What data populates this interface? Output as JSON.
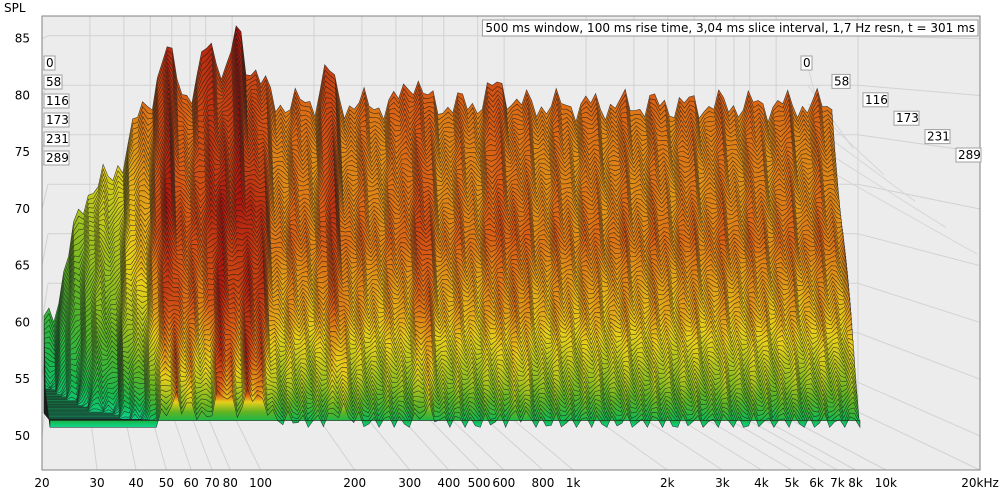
{
  "chart_data": {
    "type": "waterfall",
    "ylabel": "SPL",
    "info": "500 ms window, 100 ms rise time, 3,04 ms slice interval, 1,7 Hz resn, t = 301 ms",
    "y_ticks": [
      50,
      55,
      60,
      65,
      70,
      75,
      80,
      85
    ],
    "x_ticks": [
      {
        "v": 20,
        "label": "20"
      },
      {
        "v": 30,
        "label": "30"
      },
      {
        "v": 40,
        "label": "40"
      },
      {
        "v": 50,
        "label": "50"
      },
      {
        "v": 60,
        "label": "60"
      },
      {
        "v": 70,
        "label": "70"
      },
      {
        "v": 80,
        "label": "80"
      },
      {
        "v": 100,
        "label": "100"
      },
      {
        "v": 200,
        "label": "200"
      },
      {
        "v": 300,
        "label": "300"
      },
      {
        "v": 400,
        "label": "400"
      },
      {
        "v": 500,
        "label": "500"
      },
      {
        "v": 600,
        "label": "600"
      },
      {
        "v": 800,
        "label": "800"
      },
      {
        "v": 1000,
        "label": "1k"
      },
      {
        "v": 2000,
        "label": "2k"
      },
      {
        "v": 3000,
        "label": "3k"
      },
      {
        "v": 4000,
        "label": "4k"
      },
      {
        "v": 5000,
        "label": "5k"
      },
      {
        "v": 6000,
        "label": "6k"
      },
      {
        "v": 7000,
        "label": "7k"
      },
      {
        "v": 8000,
        "label": "8k"
      },
      {
        "v": 10000,
        "label": "10k"
      },
      {
        "v": 20000,
        "label": "20kHz"
      }
    ],
    "xlim": [
      20,
      20000
    ],
    "ylim": [
      47,
      87
    ],
    "time_labels": [
      "0",
      "58",
      "116",
      "173",
      "231",
      "289"
    ],
    "colors": {
      "top": "#c0140f",
      "mid": "#e8d21a",
      "low": "#2ca52c",
      "bottom": "#0fcf8a"
    }
  }
}
